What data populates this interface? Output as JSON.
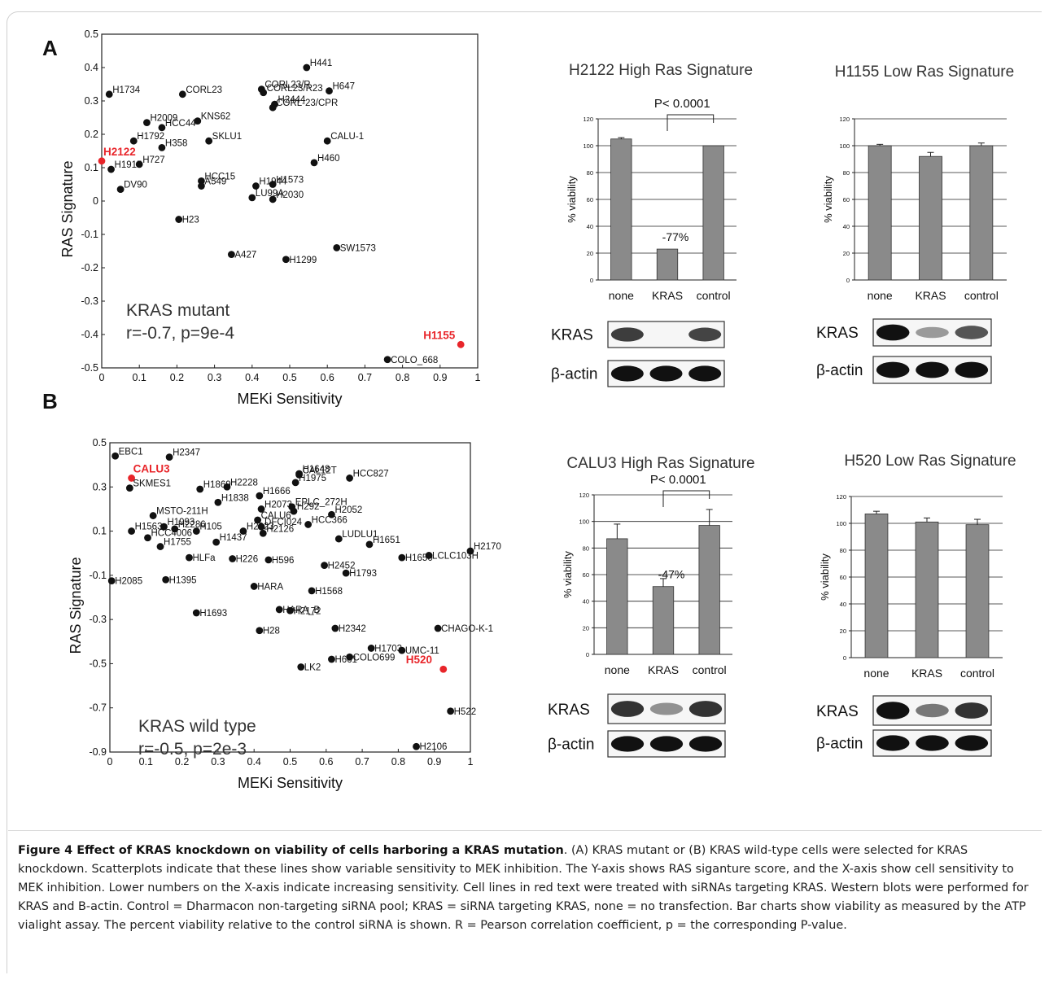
{
  "figure": {
    "caption_title": "Figure 4 Effect of KRAS knockdown on viability of cells harboring a KRAS mutation",
    "caption_text": ". (A) KRAS mutant or (B) KRAS wild-type cells were selected for KRAS knockdown. Scatterplots indicate that these lines show variable sensitivity to MEK inhibition. The Y-axis shows RAS siganture score, and the X-axis show cell sensitivity to MEK inhibition. Lower numbers on the X-axis indicate increasing sensitivity. Cell lines in red text were treated with siRNAs targeting KRAS. Western blots were performed for KRAS and B-actin. Control = Dharmacon non-targeting siRNA pool; KRAS = siRNA targeting KRAS, none = no transfection. Bar charts show viability as measured by the ATP vialight assay. The percent viability relative to the control siRNA is shown. R = Pearson correlation coefficient, p = the corresponding P-value.",
    "highlight_color": "#e8252a",
    "bar_color": "#8a8a8a"
  },
  "chart_data": [
    {
      "panel": "A",
      "type": "scatter",
      "xlabel": "MEKi Sensitivity",
      "ylabel": "RAS Signature",
      "xlim": [
        0,
        1
      ],
      "ylim": [
        -0.5,
        0.5
      ],
      "xticks": [
        "0",
        "0.1",
        "0.2",
        "0.3",
        "0.4",
        "0.5",
        "0.6",
        "0.7",
        "0.8",
        "0.9",
        "1"
      ],
      "yticks": [
        "0.5",
        "0.4",
        "0.3",
        "0.2",
        "0.1",
        "0",
        "-0.1",
        "-0.2",
        "-0.3",
        "-0.4",
        "-0.5"
      ],
      "ytick_values": [
        0.5,
        0.4,
        0.3,
        0.2,
        0.1,
        0,
        -0.1,
        -0.2,
        -0.3,
        -0.4,
        -0.5
      ],
      "annotation_lines": [
        "KRAS mutant",
        "r=-0.7, p=9e-4"
      ],
      "points": [
        {
          "label": "H441",
          "x": 0.545,
          "y": 0.4
        },
        {
          "label": "H647",
          "x": 0.605,
          "y": 0.33
        },
        {
          "label": "CORL23/R",
          "x": 0.425,
          "y": 0.335
        },
        {
          "label": "CORL23/R23",
          "x": 0.43,
          "y": 0.325
        },
        {
          "label": "H2444",
          "x": 0.46,
          "y": 0.29
        },
        {
          "label": "CORL-23/CPR",
          "x": 0.455,
          "y": 0.28
        },
        {
          "label": "H1734",
          "x": 0.02,
          "y": 0.32
        },
        {
          "label": "CORL23",
          "x": 0.215,
          "y": 0.32
        },
        {
          "label": "H2009",
          "x": 0.12,
          "y": 0.235
        },
        {
          "label": "KNS62",
          "x": 0.255,
          "y": 0.24
        },
        {
          "label": "HCC44",
          "x": 0.16,
          "y": 0.22
        },
        {
          "label": "H1792",
          "x": 0.085,
          "y": 0.18
        },
        {
          "label": "H358",
          "x": 0.16,
          "y": 0.16
        },
        {
          "label": "SKLU1",
          "x": 0.285,
          "y": 0.18
        },
        {
          "label": "CALU-1",
          "x": 0.6,
          "y": 0.18
        },
        {
          "label": "H2122",
          "x": 0.0,
          "y": 0.12,
          "red": true
        },
        {
          "label": "H727",
          "x": 0.1,
          "y": 0.11
        },
        {
          "label": "H1915",
          "x": 0.025,
          "y": 0.095
        },
        {
          "label": "H460",
          "x": 0.565,
          "y": 0.115
        },
        {
          "label": "HCC15",
          "x": 0.265,
          "y": 0.06
        },
        {
          "label": "H1944",
          "x": 0.41,
          "y": 0.045
        },
        {
          "label": "H1573",
          "x": 0.455,
          "y": 0.05
        },
        {
          "label": "A549",
          "x": 0.265,
          "y": 0.045
        },
        {
          "label": "DV90",
          "x": 0.05,
          "y": 0.035
        },
        {
          "label": "H2030",
          "x": 0.455,
          "y": 0.005
        },
        {
          "label": "LU99A",
          "x": 0.4,
          "y": 0.01
        },
        {
          "label": "H23",
          "x": 0.205,
          "y": -0.055
        },
        {
          "label": "A427",
          "x": 0.345,
          "y": -0.16
        },
        {
          "label": "H1299",
          "x": 0.49,
          "y": -0.175
        },
        {
          "label": "SW1573",
          "x": 0.625,
          "y": -0.14
        },
        {
          "label": "H1155",
          "x": 0.955,
          "y": -0.43,
          "red": true
        },
        {
          "label": "COLO_668",
          "x": 0.76,
          "y": -0.475
        }
      ]
    },
    {
      "panel": "B",
      "type": "scatter",
      "xlabel": "MEKi Sensitivity",
      "ylabel": "RAS Signature",
      "xlim": [
        0,
        1
      ],
      "ylim": [
        -0.9,
        0.5
      ],
      "xticks": [
        "0",
        "0.1",
        "0.2",
        "0.3",
        "0.4",
        "0.5",
        "0.6",
        "0.7",
        "0.8",
        "0.9",
        "1"
      ],
      "yticks": [
        "0.5",
        "0.3",
        "0.1",
        "-0.1",
        "-0.3",
        "-0.5",
        "-0.7",
        "-0.9"
      ],
      "ytick_values": [
        0.5,
        0.3,
        0.1,
        -0.1,
        -0.3,
        -0.5,
        -0.7,
        -0.9
      ],
      "annotation_lines": [
        "KRAS wild type",
        "r=-0.5, p=2e-3"
      ],
      "points": [
        {
          "label": "EBC1",
          "x": 0.015,
          "y": 0.44
        },
        {
          "label": "H2347",
          "x": 0.165,
          "y": 0.435
        },
        {
          "label": "CALU3",
          "x": 0.06,
          "y": 0.34,
          "red": true
        },
        {
          "label": "SKMES1",
          "x": 0.055,
          "y": 0.295
        },
        {
          "label": "CAL12T",
          "x": 0.525,
          "y": 0.355
        },
        {
          "label": "H1648",
          "x": 0.525,
          "y": 0.36
        },
        {
          "label": "HCC827",
          "x": 0.665,
          "y": 0.34
        },
        {
          "label": "H1975",
          "x": 0.515,
          "y": 0.32
        },
        {
          "label": "H2228",
          "x": 0.325,
          "y": 0.3
        },
        {
          "label": "H1869",
          "x": 0.25,
          "y": 0.29
        },
        {
          "label": "H1666",
          "x": 0.415,
          "y": 0.26
        },
        {
          "label": "EPLC_272H",
          "x": 0.505,
          "y": 0.21
        },
        {
          "label": "H1838",
          "x": 0.3,
          "y": 0.23
        },
        {
          "label": "H2073",
          "x": 0.42,
          "y": 0.2
        },
        {
          "label": "H292",
          "x": 0.51,
          "y": 0.19
        },
        {
          "label": "H2052",
          "x": 0.615,
          "y": 0.175
        },
        {
          "label": "MSTO-211H",
          "x": 0.12,
          "y": 0.17
        },
        {
          "label": "H1993",
          "x": 0.15,
          "y": 0.12
        },
        {
          "label": "H2286",
          "x": 0.18,
          "y": 0.11
        },
        {
          "label": "CALU6",
          "x": 0.41,
          "y": 0.15
        },
        {
          "label": "HCC366",
          "x": 0.55,
          "y": 0.13
        },
        {
          "label": "H2023",
          "x": 0.37,
          "y": 0.1
        },
        {
          "label": "DFCI024",
          "x": 0.42,
          "y": 0.12
        },
        {
          "label": "H2126",
          "x": 0.425,
          "y": 0.09
        },
        {
          "label": "H1437",
          "x": 0.295,
          "y": 0.05
        },
        {
          "label": "H105",
          "x": 0.24,
          "y": 0.1
        },
        {
          "label": "H2170",
          "x": 1.0,
          "y": 0.01
        },
        {
          "label": "LUDLU1",
          "x": 0.635,
          "y": 0.065
        },
        {
          "label": "HCC4006",
          "x": 0.105,
          "y": 0.07
        },
        {
          "label": "H1651",
          "x": 0.72,
          "y": 0.04
        },
        {
          "label": "H1755",
          "x": 0.14,
          "y": 0.03
        },
        {
          "label": "HLFa",
          "x": 0.22,
          "y": -0.02
        },
        {
          "label": "H1563",
          "x": 0.06,
          "y": 0.1
        },
        {
          "label": "H2085",
          "x": 0.005,
          "y": -0.125
        },
        {
          "label": "H1395",
          "x": 0.155,
          "y": -0.12
        },
        {
          "label": "H226",
          "x": 0.34,
          "y": -0.025
        },
        {
          "label": "H596",
          "x": 0.44,
          "y": -0.03
        },
        {
          "label": "H2452",
          "x": 0.595,
          "y": -0.055
        },
        {
          "label": "HARA",
          "x": 0.4,
          "y": -0.15
        },
        {
          "label": "H1568",
          "x": 0.56,
          "y": -0.17
        },
        {
          "label": "H1793",
          "x": 0.655,
          "y": -0.09
        },
        {
          "label": "LCLC103H",
          "x": 0.885,
          "y": -0.01
        },
        {
          "label": "H1650",
          "x": 0.81,
          "y": -0.02
        },
        {
          "label": "HARA_B",
          "x": 0.47,
          "y": -0.255
        },
        {
          "label": "H2172",
          "x": 0.5,
          "y": -0.26
        },
        {
          "label": "H1693",
          "x": 0.24,
          "y": -0.27
        },
        {
          "label": "H28",
          "x": 0.415,
          "y": -0.35
        },
        {
          "label": "H2342",
          "x": 0.625,
          "y": -0.34
        },
        {
          "label": "CHAGO-K-1",
          "x": 0.91,
          "y": -0.34
        },
        {
          "label": "H1703",
          "x": 0.725,
          "y": -0.43
        },
        {
          "label": "UMC-11",
          "x": 0.81,
          "y": -0.44
        },
        {
          "label": "H661",
          "x": 0.615,
          "y": -0.48
        },
        {
          "label": "COLO699",
          "x": 0.665,
          "y": -0.47
        },
        {
          "label": "H520",
          "x": 0.925,
          "y": -0.525,
          "red": true
        },
        {
          "label": "LK2",
          "x": 0.53,
          "y": -0.515
        },
        {
          "label": "H522",
          "x": 0.945,
          "y": -0.715
        },
        {
          "label": "H2106",
          "x": 0.85,
          "y": -0.875
        }
      ]
    },
    {
      "panel": "A-H2122",
      "type": "bar",
      "title": "H2122 High Ras Signature",
      "ylabel": "% viability",
      "ylim": [
        0,
        120
      ],
      "yticks": [
        "0",
        "20",
        "40",
        "60",
        "80",
        "100",
        "120"
      ],
      "categories": [
        "none",
        "KRAS",
        "control"
      ],
      "values": [
        105,
        23,
        100
      ],
      "errors": [
        1,
        0,
        0
      ],
      "significance": "P< 0.0001",
      "change_label": "-77%"
    },
    {
      "panel": "A-H1155",
      "type": "bar",
      "title": "H1155 Low Ras Signature",
      "ylabel": "% viability",
      "ylim": [
        0,
        120
      ],
      "yticks": [
        "0",
        "20",
        "40",
        "60",
        "80",
        "100",
        "120"
      ],
      "categories": [
        "none",
        "KRAS",
        "control"
      ],
      "values": [
        100,
        92,
        100
      ],
      "errors": [
        1,
        3,
        2
      ]
    },
    {
      "panel": "B-CALU3",
      "type": "bar",
      "title": "CALU3 High Ras Signature",
      "ylabel": "% viability",
      "ylim": [
        0,
        120
      ],
      "yticks": [
        "0",
        "20",
        "40",
        "60",
        "80",
        "100",
        "120"
      ],
      "categories": [
        "none",
        "KRAS",
        "control"
      ],
      "values": [
        87,
        51,
        97
      ],
      "errors": [
        11,
        6,
        12
      ],
      "significance": "P< 0.0001",
      "change_label": "-47%"
    },
    {
      "panel": "B-H520",
      "type": "bar",
      "title": "H520 Low Ras Signature",
      "ylabel": "% viability",
      "ylim": [
        0,
        120
      ],
      "yticks": [
        "0",
        "20",
        "40",
        "60",
        "80",
        "100",
        "120"
      ],
      "categories": [
        "none",
        "KRAS",
        "control"
      ],
      "values": [
        107,
        101,
        99
      ],
      "errors": [
        2,
        3,
        4
      ]
    }
  ],
  "blots": [
    {
      "panel": "H2122",
      "rows": [
        {
          "label": "KRAS",
          "bands": [
            0.75,
            0.0,
            0.7
          ]
        },
        {
          "label": "β-actin",
          "bands": [
            1,
            1,
            1
          ]
        }
      ]
    },
    {
      "panel": "H1155",
      "rows": [
        {
          "label": "KRAS",
          "bands": [
            1.0,
            0.2,
            0.6
          ]
        },
        {
          "label": "β-actin",
          "bands": [
            1,
            1,
            1
          ]
        }
      ]
    },
    {
      "panel": "CALU3",
      "rows": [
        {
          "label": "KRAS",
          "bands": [
            0.8,
            0.25,
            0.8
          ]
        },
        {
          "label": "β-actin",
          "bands": [
            1,
            1,
            1
          ]
        }
      ]
    },
    {
      "panel": "H520",
      "rows": [
        {
          "label": "KRAS",
          "bands": [
            1.0,
            0.4,
            0.8
          ]
        },
        {
          "label": "β-actin",
          "bands": [
            1,
            1,
            1
          ]
        }
      ]
    }
  ],
  "panel_letters": [
    "A",
    "B"
  ]
}
